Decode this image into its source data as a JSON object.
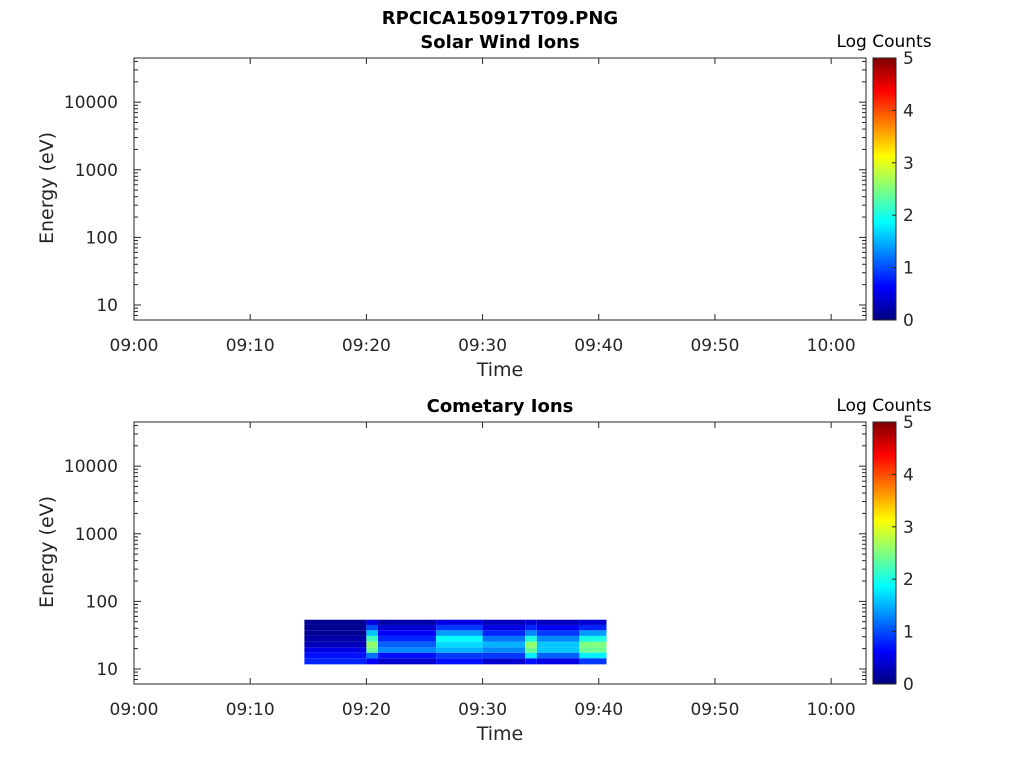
{
  "figure_title": "RPCICA150917T09.PNG",
  "colorscale": [
    "#00007f",
    "#0000ff",
    "#007fff",
    "#00ffff",
    "#7fff7f",
    "#ffff00",
    "#ff7f00",
    "#ff0000",
    "#7f0000"
  ],
  "chart_data": [
    {
      "type": "heatmap",
      "title": "Solar Wind Ions",
      "xlabel": "Time",
      "ylabel": "Energy (eV)",
      "x_ticks": [
        "09:00",
        "09:10",
        "09:20",
        "09:30",
        "09:40",
        "09:50",
        "10:00"
      ],
      "xlim": [
        "09:00",
        "10:03"
      ],
      "y_ticks": [
        "10",
        "100",
        "1000",
        "10000"
      ],
      "ylim": [
        6,
        45000
      ],
      "yscale": "log",
      "colorbar": {
        "label": "Log Counts",
        "ticks": [
          "0",
          "1",
          "2",
          "3",
          "4",
          "5"
        ],
        "range": [
          0,
          5
        ]
      },
      "bands": []
    },
    {
      "type": "heatmap",
      "title": "Cometary Ions",
      "xlabel": "Time",
      "ylabel": "Energy (eV)",
      "x_ticks": [
        "09:00",
        "09:10",
        "09:20",
        "09:30",
        "09:40",
        "09:50",
        "10:00"
      ],
      "xlim": [
        "09:00",
        "10:03"
      ],
      "y_ticks": [
        "10",
        "100",
        "1000",
        "10000"
      ],
      "ylim": [
        6,
        45000
      ],
      "yscale": "log",
      "colorbar": {
        "label": "Log Counts",
        "ticks": [
          "0",
          "1",
          "2",
          "3",
          "4",
          "5"
        ],
        "range": [
          0,
          5
        ]
      },
      "bands": [
        {
          "start": "09:14:40",
          "end": "09:20:00",
          "energies": [
            13,
            16,
            19,
            23,
            28,
            34,
            41,
            49
          ],
          "levels": [
            0.8,
            0.7,
            0.5,
            0.3,
            0.2,
            0.1,
            0.1,
            0.1
          ]
        },
        {
          "start": "09:20:00",
          "end": "09:21:00",
          "energies": [
            13,
            16,
            19,
            23,
            28,
            34,
            41,
            49
          ],
          "levels": [
            0.6,
            1.2,
            2.4,
            2.6,
            2.2,
            1.6,
            1.0,
            0.5
          ]
        },
        {
          "start": "09:21:00",
          "end": "09:26:00",
          "energies": [
            13,
            16,
            19,
            23,
            28,
            34,
            41,
            49
          ],
          "levels": [
            0.4,
            0.7,
            1.3,
            1.1,
            0.8,
            0.6,
            0.4,
            0.2
          ]
        },
        {
          "start": "09:26:00",
          "end": "09:30:00",
          "energies": [
            13,
            16,
            19,
            23,
            28,
            34,
            41,
            49
          ],
          "levels": [
            0.7,
            0.9,
            1.5,
            1.7,
            1.9,
            1.4,
            0.9,
            0.5
          ]
        },
        {
          "start": "09:30:00",
          "end": "09:33:40",
          "energies": [
            13,
            16,
            19,
            23,
            28,
            34,
            41,
            49
          ],
          "levels": [
            0.4,
            0.9,
            1.3,
            1.5,
            1.2,
            0.8,
            0.5,
            0.3
          ]
        },
        {
          "start": "09:33:40",
          "end": "09:34:40",
          "energies": [
            13,
            16,
            19,
            23,
            28,
            34,
            41,
            49
          ],
          "levels": [
            0.7,
            1.8,
            2.4,
            2.6,
            2.0,
            1.3,
            0.8,
            0.4
          ]
        },
        {
          "start": "09:34:40",
          "end": "09:38:20",
          "energies": [
            13,
            16,
            19,
            23,
            28,
            34,
            41,
            49
          ],
          "levels": [
            0.5,
            1.1,
            1.6,
            1.6,
            1.3,
            0.9,
            0.6,
            0.3
          ]
        },
        {
          "start": "09:38:20",
          "end": "09:40:40",
          "energies": [
            13,
            16,
            19,
            23,
            28,
            34,
            41,
            49
          ],
          "levels": [
            0.9,
            1.8,
            2.4,
            2.5,
            2.0,
            1.4,
            0.8,
            0.4
          ]
        }
      ]
    }
  ]
}
